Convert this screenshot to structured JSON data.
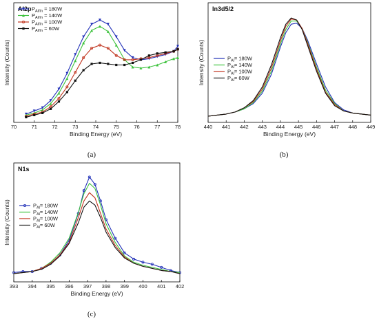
{
  "chart_data": [
    {
      "type": "line",
      "panel_label": "(a)",
      "title": "Al2p",
      "xlabel": "Binding Energy (eV)",
      "ylabel": "Intensity (Counts)",
      "xlim": [
        70,
        78
      ],
      "xticks": [
        70,
        71,
        72,
        73,
        74,
        75,
        76,
        77,
        78
      ],
      "legend_position": "top-left",
      "x": [
        70.6,
        71.0,
        71.4,
        71.8,
        72.2,
        72.6,
        73.0,
        73.4,
        73.8,
        74.2,
        74.6,
        75.0,
        75.4,
        75.8,
        76.2,
        76.6,
        77.0,
        77.4,
        77.8,
        78.0
      ],
      "series": [
        {
          "name": "P",
          "sub": "Al/In",
          "suffix": " = 180W",
          "color": "#2231b8",
          "marker": "tri-down",
          "values": [
            0.04,
            0.07,
            0.1,
            0.17,
            0.28,
            0.43,
            0.61,
            0.78,
            0.9,
            0.94,
            0.9,
            0.78,
            0.65,
            0.58,
            0.56,
            0.57,
            0.59,
            0.61,
            0.64,
            0.69
          ]
        },
        {
          "name": "P",
          "sub": "Al/In",
          "suffix": " = 140W",
          "color": "#3cc23c",
          "marker": "tri-up",
          "values": [
            0.03,
            0.05,
            0.08,
            0.14,
            0.24,
            0.38,
            0.55,
            0.72,
            0.84,
            0.88,
            0.83,
            0.7,
            0.56,
            0.49,
            0.48,
            0.49,
            0.51,
            0.54,
            0.57,
            0.58
          ]
        },
        {
          "name": "P",
          "sub": "Al/In",
          "suffix": " = 100W",
          "color": "#c0321c",
          "marker": "circle",
          "values": [
            0.02,
            0.04,
            0.06,
            0.11,
            0.19,
            0.3,
            0.44,
            0.58,
            0.67,
            0.7,
            0.67,
            0.6,
            0.56,
            0.56,
            0.57,
            0.58,
            0.6,
            0.62,
            0.64,
            0.66
          ]
        },
        {
          "name": "P",
          "sub": "Al/In",
          "suffix": " = 60W",
          "color": "#111111",
          "marker": "square",
          "values": [
            0.01,
            0.03,
            0.05,
            0.09,
            0.16,
            0.25,
            0.36,
            0.46,
            0.52,
            0.53,
            0.52,
            0.51,
            0.51,
            0.53,
            0.56,
            0.6,
            0.62,
            0.63,
            0.64,
            0.66
          ]
        }
      ]
    },
    {
      "type": "line",
      "panel_label": "(b)",
      "title": "In3d5/2",
      "xlabel": "Binding Energy (eV)",
      "ylabel": "Intensity (Counts)",
      "xlim": [
        440,
        449
      ],
      "xticks": [
        440,
        441,
        442,
        443,
        444,
        445,
        446,
        447,
        448,
        449
      ],
      "legend_position": "left",
      "x": [
        440.0,
        440.5,
        441.0,
        441.5,
        442.0,
        442.5,
        443.0,
        443.5,
        444.0,
        444.3,
        444.6,
        444.9,
        445.2,
        445.5,
        446.0,
        446.5,
        447.0,
        447.5,
        448.0,
        448.5,
        449.0
      ],
      "series": [
        {
          "name": "P",
          "sub": "Al",
          "suffix": "= 180W",
          "color": "#2231b8",
          "marker": "line",
          "values": [
            0.02,
            0.03,
            0.04,
            0.06,
            0.09,
            0.14,
            0.24,
            0.42,
            0.68,
            0.82,
            0.9,
            0.91,
            0.86,
            0.75,
            0.52,
            0.3,
            0.15,
            0.08,
            0.05,
            0.04,
            0.03
          ]
        },
        {
          "name": "P",
          "sub": "Al",
          "suffix": "= 140W",
          "color": "#3cc23c",
          "marker": "line",
          "values": [
            0.02,
            0.03,
            0.04,
            0.06,
            0.09,
            0.15,
            0.26,
            0.45,
            0.71,
            0.85,
            0.93,
            0.93,
            0.86,
            0.73,
            0.49,
            0.27,
            0.14,
            0.07,
            0.05,
            0.04,
            0.03
          ]
        },
        {
          "name": "P",
          "sub": "Al",
          "suffix": "= 100W",
          "color": "#c0321c",
          "marker": "line",
          "values": [
            0.02,
            0.03,
            0.04,
            0.06,
            0.1,
            0.16,
            0.28,
            0.48,
            0.74,
            0.88,
            0.95,
            0.94,
            0.86,
            0.72,
            0.47,
            0.25,
            0.13,
            0.07,
            0.05,
            0.04,
            0.03
          ]
        },
        {
          "name": "P",
          "sub": "Al",
          "suffix": "= 60W",
          "color": "#111111",
          "marker": "line",
          "values": [
            0.02,
            0.03,
            0.04,
            0.06,
            0.1,
            0.17,
            0.3,
            0.51,
            0.77,
            0.9,
            0.96,
            0.94,
            0.85,
            0.7,
            0.45,
            0.24,
            0.12,
            0.07,
            0.05,
            0.04,
            0.03
          ]
        }
      ]
    },
    {
      "type": "line",
      "panel_label": "(c)",
      "title": "N1s",
      "xlabel": "Binding Energy (eV)",
      "ylabel": "Intensity (Counts)",
      "xlim": [
        393,
        402
      ],
      "xticks": [
        393,
        394,
        395,
        396,
        397,
        398,
        399,
        400,
        401,
        402
      ],
      "legend_position": "left",
      "x": [
        393.0,
        393.5,
        394.0,
        394.5,
        395.0,
        395.5,
        396.0,
        396.5,
        396.8,
        397.1,
        397.4,
        397.7,
        398.0,
        398.5,
        399.0,
        399.5,
        400.0,
        400.5,
        401.0,
        401.5,
        402.0
      ],
      "series": [
        {
          "name": "P",
          "sub": "Al",
          "suffix": "= 180W",
          "color": "#2231b8",
          "marker": "circle",
          "values": [
            0.05,
            0.06,
            0.06,
            0.09,
            0.14,
            0.22,
            0.36,
            0.62,
            0.84,
            0.97,
            0.9,
            0.74,
            0.56,
            0.38,
            0.24,
            0.18,
            0.15,
            0.13,
            0.1,
            0.07,
            0.05
          ]
        },
        {
          "name": "P",
          "sub": "Al",
          "suffix": "= 140W",
          "color": "#3cc23c",
          "marker": "line",
          "values": [
            0.04,
            0.05,
            0.06,
            0.09,
            0.15,
            0.24,
            0.38,
            0.63,
            0.81,
            0.91,
            0.86,
            0.7,
            0.52,
            0.34,
            0.21,
            0.15,
            0.12,
            0.1,
            0.08,
            0.06,
            0.05
          ]
        },
        {
          "name": "P",
          "sub": "Al",
          "suffix": "= 100W",
          "color": "#c0321c",
          "marker": "line",
          "values": [
            0.04,
            0.05,
            0.06,
            0.09,
            0.14,
            0.22,
            0.34,
            0.58,
            0.74,
            0.82,
            0.77,
            0.62,
            0.47,
            0.31,
            0.2,
            0.14,
            0.11,
            0.09,
            0.07,
            0.06,
            0.04
          ]
        },
        {
          "name": "P",
          "sub": "Al",
          "suffix": "= 60W",
          "color": "#111111",
          "marker": "line",
          "values": [
            0.04,
            0.05,
            0.06,
            0.08,
            0.13,
            0.21,
            0.33,
            0.53,
            0.68,
            0.74,
            0.7,
            0.58,
            0.44,
            0.29,
            0.19,
            0.14,
            0.11,
            0.09,
            0.07,
            0.06,
            0.04
          ]
        }
      ]
    }
  ]
}
